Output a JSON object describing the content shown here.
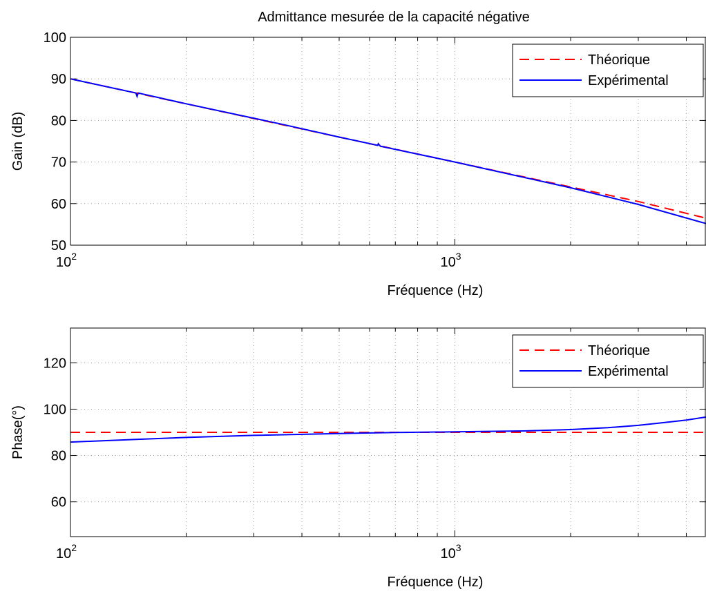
{
  "title": "Admittance mesurée de la capacité négative",
  "chart_data": [
    {
      "type": "line",
      "x_scale": "log",
      "xlim": [
        100,
        4500
      ],
      "ylim": [
        50,
        100
      ],
      "xlabel": "Fréquence (Hz)",
      "ylabel": "Gain (dB)",
      "xtick_labels": [
        {
          "base": "10",
          "exp": "2",
          "value": 100
        },
        {
          "base": "10",
          "exp": "3",
          "value": 1000
        }
      ],
      "yticks": [
        50,
        60,
        70,
        80,
        90,
        100
      ],
      "grid": true,
      "legend_position": "top-right",
      "series": [
        {
          "name": "Théorique",
          "color": "#ff0000",
          "style": "dashed",
          "x": [
            100,
            200,
            500,
            1000,
            2000,
            3000,
            4500
          ],
          "y": [
            90,
            84,
            76,
            70,
            64,
            60.5,
            56.5
          ]
        },
        {
          "name": "Expérimental",
          "color": "#0000ff",
          "style": "solid",
          "x": [
            100,
            148,
            149,
            150,
            200,
            350,
            500,
            630,
            632,
            640,
            1000,
            2000,
            3000,
            4500
          ],
          "y": [
            90,
            86.6,
            85.8,
            86.6,
            84,
            79.2,
            76,
            74,
            74.4,
            73.8,
            70,
            63.8,
            59.8,
            55.2
          ]
        }
      ]
    },
    {
      "type": "line",
      "x_scale": "log",
      "xlim": [
        100,
        4500
      ],
      "ylim": [
        45,
        135
      ],
      "xlabel": "Fréquence (Hz)",
      "ylabel": "Phase(°)",
      "xtick_labels": [
        {
          "base": "10",
          "exp": "2",
          "value": 100
        },
        {
          "base": "10",
          "exp": "3",
          "value": 1000
        }
      ],
      "yticks": [
        60,
        80,
        100,
        120
      ],
      "grid": true,
      "legend_position": "top-right",
      "series": [
        {
          "name": "Théorique",
          "color": "#ff0000",
          "style": "dashed",
          "x": [
            100,
            4500
          ],
          "y": [
            90,
            90
          ]
        },
        {
          "name": "Expérimental",
          "color": "#0000ff",
          "style": "solid",
          "x": [
            100,
            150,
            200,
            300,
            500,
            700,
            1000,
            1500,
            2000,
            2500,
            3000,
            3500,
            4000,
            4500
          ],
          "y": [
            85.8,
            87,
            87.8,
            88.7,
            89.5,
            89.9,
            90.2,
            90.6,
            91.2,
            92,
            93,
            94.2,
            95.3,
            96.6
          ]
        }
      ]
    }
  ]
}
